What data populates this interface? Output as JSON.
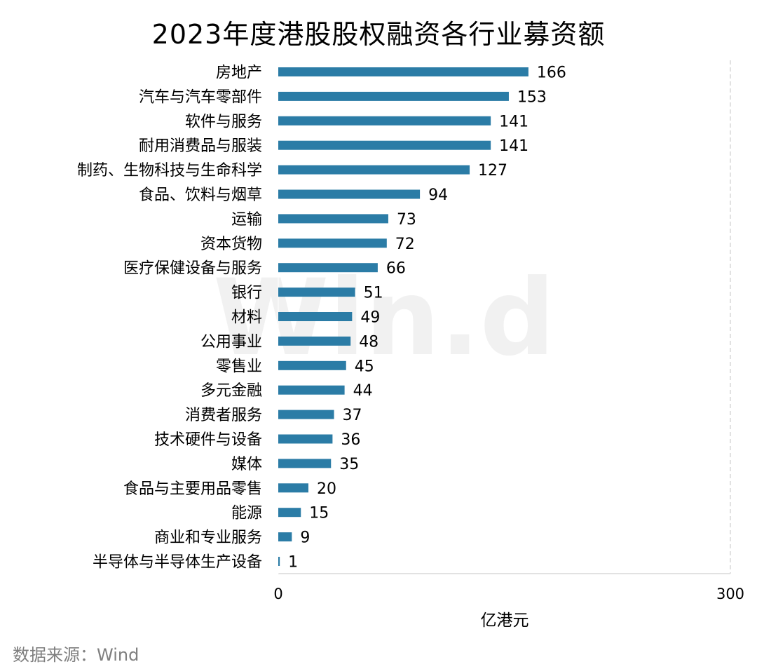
{
  "chart_data": {
    "type": "bar",
    "orientation": "horizontal",
    "title": "2023年度港股股权融资各行业募资额",
    "categories": [
      "房地产",
      "汽车与汽车零部件",
      "软件与服务",
      "耐用消费品与服装",
      "制药、生物科技与生命科学",
      "食品、饮料与烟草",
      "运输",
      "资本货物",
      "医疗保健设备与服务",
      "银行",
      "材料",
      "公用事业",
      "零售业",
      "多元金融",
      "消费者服务",
      "技术硬件与设备",
      "媒体",
      "食品与主要用品零售",
      "能源",
      "商业和专业服务",
      "半导体与半导体生产设备"
    ],
    "values": [
      166,
      153,
      141,
      141,
      127,
      94,
      73,
      72,
      66,
      51,
      49,
      48,
      45,
      44,
      37,
      36,
      35,
      20,
      15,
      9,
      1
    ],
    "xlim": [
      0,
      300
    ],
    "xticks": [
      0,
      300
    ],
    "xlabel": "亿港元",
    "ylabel": "",
    "bar_color": "#2b7ca6",
    "grid": false,
    "data_labels": true
  },
  "watermark": "Win.d",
  "source": "数据来源：Wind"
}
